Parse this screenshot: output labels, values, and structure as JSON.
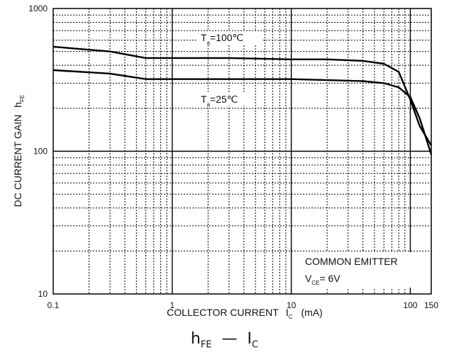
{
  "chart_data": {
    "type": "line",
    "x_scale": "log",
    "y_scale": "log",
    "xlim": [
      0.1,
      150
    ],
    "ylim": [
      10,
      1000
    ],
    "grid": true,
    "x_ticks": [
      "0.1",
      "1",
      "10",
      "100",
      "150"
    ],
    "y_ticks": [
      "10",
      "100",
      "1000"
    ],
    "xlabel": {
      "main": "COLLECTOR CURRENT",
      "symbol": "I",
      "sub": "C",
      "unit": "(mA)"
    },
    "ylabel": {
      "main": "DC CURRENT GAIN",
      "symbol": "h",
      "sub": "FE"
    },
    "annotations": {
      "t100": {
        "pre": "T",
        "sub": "a",
        "post": "=100℃"
      },
      "t25": {
        "pre": "T",
        "sub": "a",
        "post": "=25℃"
      },
      "common_emitter": "COMMON EMITTER",
      "vce": {
        "pre": "V",
        "sub": "CE",
        "post": "= 6V"
      }
    },
    "series": [
      {
        "name": "",
        "x": [
          0.1,
          0.3,
          0.6,
          1,
          3,
          10,
          20,
          40,
          60,
          80,
          100,
          120,
          150
        ],
        "y": [
          540,
          500,
          450,
          450,
          450,
          440,
          440,
          430,
          410,
          360,
          230,
          150,
          110
        ]
      },
      {
        "name": "",
        "x": [
          0.1,
          0.3,
          0.6,
          1,
          3,
          10,
          20,
          40,
          60,
          80,
          100,
          120,
          150
        ],
        "y": [
          370,
          350,
          320,
          320,
          320,
          320,
          315,
          310,
          300,
          280,
          240,
          170,
          95
        ]
      }
    ]
  },
  "caption": {
    "h": "h",
    "h_sub": "FE",
    "dash": "—",
    "i": "I",
    "i_sub": "C"
  }
}
